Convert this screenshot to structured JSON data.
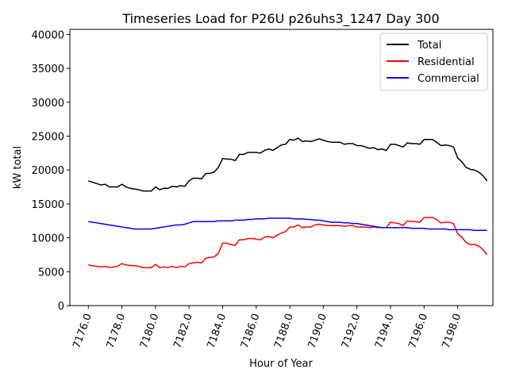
{
  "chart_data": {
    "type": "line",
    "title": "Timeseries Load for P26U p26uhs3_1247  Day 300",
    "xlabel": "Hour of Year",
    "ylabel": "kW total",
    "xlim": [
      7174.9,
      7200.1
    ],
    "ylim": [
      0,
      40750
    ],
    "yticks": [
      0,
      5000,
      10000,
      15000,
      20000,
      25000,
      30000,
      35000,
      40000
    ],
    "xticks": [
      7176,
      7178,
      7180,
      7182,
      7184,
      7186,
      7188,
      7190,
      7192,
      7194,
      7196,
      7198
    ],
    "xtick_labels": [
      "7176.0",
      "7178.0",
      "7180.0",
      "7182.0",
      "7184.0",
      "7186.0",
      "7188.0",
      "7190.0",
      "7192.0",
      "7194.0",
      "7196.0",
      "7198.0"
    ],
    "ytick_labels": [
      "0",
      "5000",
      "10000",
      "15000",
      "20000",
      "25000",
      "30000",
      "35000",
      "40000"
    ],
    "legend_position": "top-right",
    "x_start": 7176,
    "x_step": 0.25,
    "series": [
      {
        "name": "Total",
        "color": "#000000",
        "values": [
          18400,
          18200,
          18000,
          17800,
          17900,
          17500,
          17500,
          17500,
          17900,
          17500,
          17300,
          17200,
          17100,
          16900,
          16900,
          16900,
          17500,
          17100,
          17300,
          17300,
          17600,
          17500,
          17700,
          17600,
          18400,
          18800,
          18800,
          18700,
          19500,
          19500,
          19700,
          20400,
          21700,
          21600,
          21600,
          21400,
          22300,
          22300,
          22600,
          22600,
          22600,
          22500,
          22900,
          23100,
          22900,
          23300,
          23700,
          23800,
          24500,
          24400,
          24700,
          24200,
          24300,
          24200,
          24400,
          24600,
          24400,
          24200,
          24100,
          24100,
          24100,
          23800,
          23900,
          23900,
          23600,
          23600,
          23400,
          23200,
          23300,
          23000,
          23100,
          22900,
          23800,
          23800,
          23600,
          23400,
          24000,
          23900,
          23900,
          23800,
          24500,
          24500,
          24500,
          24100,
          23600,
          23700,
          23600,
          23400,
          21800,
          21200,
          20400,
          20100,
          20000,
          19700,
          19200,
          18400
        ]
      },
      {
        "name": "Residential",
        "color": "#ff0000",
        "values": [
          6000,
          5900,
          5800,
          5700,
          5800,
          5600,
          5700,
          5800,
          6200,
          6000,
          5900,
          5900,
          5800,
          5600,
          5600,
          5600,
          6100,
          5600,
          5700,
          5600,
          5800,
          5600,
          5800,
          5700,
          6200,
          6300,
          6400,
          6300,
          7000,
          7100,
          7200,
          7700,
          9200,
          9200,
          9000,
          8900,
          9700,
          9700,
          9900,
          9900,
          9800,
          9700,
          10100,
          10200,
          10000,
          10400,
          10700,
          10900,
          11600,
          11600,
          11900,
          11500,
          11600,
          11600,
          11900,
          12000,
          11900,
          11800,
          11800,
          11800,
          11800,
          11700,
          11800,
          11800,
          11600,
          11600,
          11600,
          11500,
          11600,
          11500,
          11500,
          11500,
          12300,
          12200,
          12100,
          11800,
          12500,
          12400,
          12400,
          12300,
          13000,
          13000,
          13000,
          12700,
          12200,
          12300,
          12300,
          12100,
          10600,
          10100,
          9300,
          9000,
          9000,
          8800,
          8300,
          7500
        ]
      },
      {
        "name": "Commercial",
        "color": "#0000ff",
        "values": [
          12400,
          12300,
          12200,
          12100,
          12000,
          11900,
          11800,
          11700,
          11600,
          11500,
          11400,
          11300,
          11300,
          11300,
          11300,
          11300,
          11400,
          11500,
          11600,
          11700,
          11800,
          11900,
          11900,
          12000,
          12200,
          12400,
          12400,
          12400,
          12400,
          12400,
          12400,
          12500,
          12500,
          12500,
          12500,
          12600,
          12600,
          12600,
          12700,
          12700,
          12800,
          12800,
          12800,
          12900,
          12900,
          12900,
          12900,
          12900,
          12900,
          12800,
          12800,
          12800,
          12700,
          12700,
          12600,
          12600,
          12500,
          12400,
          12300,
          12300,
          12300,
          12200,
          12200,
          12100,
          12100,
          12000,
          11900,
          11800,
          11700,
          11600,
          11500,
          11500,
          11500,
          11500,
          11500,
          11500,
          11500,
          11400,
          11400,
          11400,
          11400,
          11300,
          11300,
          11300,
          11300,
          11300,
          11200,
          11200,
          11200,
          11200,
          11200,
          11200,
          11100,
          11100,
          11100,
          11100
        ]
      }
    ]
  }
}
